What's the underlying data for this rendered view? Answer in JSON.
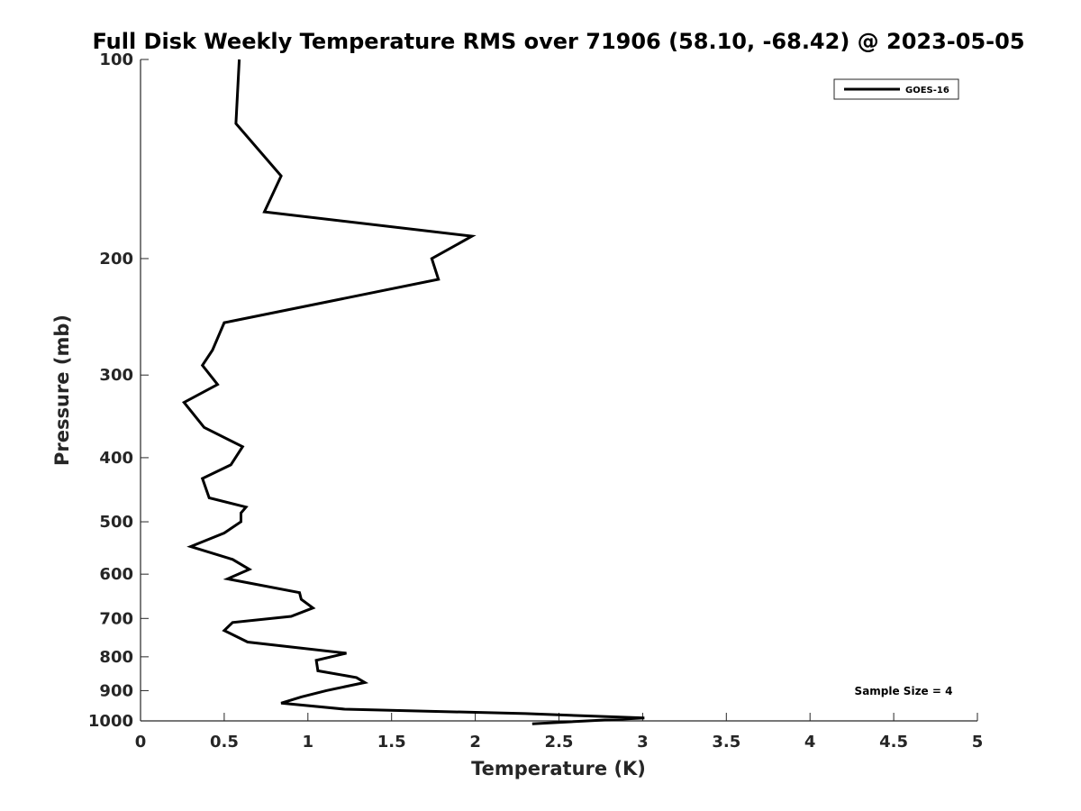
{
  "chart_data": {
    "type": "line",
    "title": "Full Disk Weekly Temperature RMS over 71906 (58.10, -68.42) @ 2023-05-05",
    "xlabel": "Temperature (K)",
    "ylabel": "Pressure (mb)",
    "xlim": [
      0,
      5
    ],
    "ylim": [
      100,
      1000
    ],
    "y_scale": "log",
    "y_reversed": true,
    "x_ticks": [
      "0",
      "0.5",
      "1",
      "1.5",
      "2",
      "2.5",
      "3",
      "3.5",
      "4",
      "4.5",
      "5"
    ],
    "y_ticks": [
      "100",
      "200",
      "300",
      "400",
      "500",
      "600",
      "700",
      "800",
      "900",
      "1000"
    ],
    "grid": false,
    "legend_position": "top-right",
    "line_color": "#000000",
    "series": [
      {
        "name": "GOES-16",
        "x": [
          0.59,
          0.57,
          0.84,
          0.74,
          1.98,
          1.74,
          1.78,
          0.5,
          0.43,
          0.37,
          0.46,
          0.26,
          0.38,
          0.61,
          0.54,
          0.37,
          0.41,
          0.63,
          0.6,
          0.6,
          0.5,
          0.3,
          0.55,
          0.65,
          0.52,
          0.95,
          0.96,
          1.03,
          0.9,
          0.55,
          0.5,
          0.64,
          1.23,
          1.05,
          1.06,
          1.29,
          1.34,
          1.11,
          0.96,
          0.84,
          1.22,
          2.3,
          3.01,
          2.34
        ],
        "y": [
          100,
          125,
          150,
          170,
          185,
          200,
          215,
          250,
          275,
          290,
          310,
          330,
          360,
          385,
          410,
          430,
          460,
          475,
          485,
          500,
          520,
          545,
          570,
          590,
          610,
          640,
          655,
          675,
          695,
          710,
          730,
          760,
          790,
          810,
          840,
          860,
          875,
          900,
          920,
          940,
          960,
          975,
          990,
          1010
        ]
      }
    ],
    "annotation": "Sample Size = 4"
  }
}
